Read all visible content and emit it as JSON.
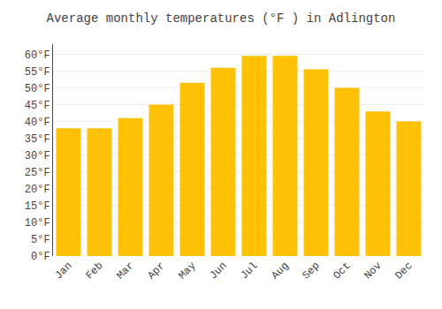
{
  "chart_data": {
    "type": "bar",
    "title": "Average monthly temperatures (°F ) in Adlington",
    "categories": [
      "Jan",
      "Feb",
      "Mar",
      "Apr",
      "May",
      "Jun",
      "Jul",
      "Aug",
      "Sep",
      "Oct",
      "Nov",
      "Dec"
    ],
    "values": [
      38,
      38,
      41,
      45,
      51.5,
      56,
      59.5,
      59.5,
      55.5,
      50,
      43,
      40
    ],
    "color": "#FFC107",
    "ylim": [
      0,
      63
    ],
    "yticks": [
      {
        "value": 0,
        "label": "0°F"
      },
      {
        "value": 5,
        "label": "5°F"
      },
      {
        "value": 10,
        "label": "10°F"
      },
      {
        "value": 15,
        "label": "15°F"
      },
      {
        "value": 20,
        "label": "20°F"
      },
      {
        "value": 25,
        "label": "25°F"
      },
      {
        "value": 30,
        "label": "30°F"
      },
      {
        "value": 35,
        "label": "35°F"
      },
      {
        "value": 40,
        "label": "40°F"
      },
      {
        "value": 45,
        "label": "45°F"
      },
      {
        "value": 50,
        "label": "50°F"
      },
      {
        "value": 55,
        "label": "55°F"
      },
      {
        "value": 60,
        "label": "60°F"
      }
    ],
    "grid": true
  }
}
